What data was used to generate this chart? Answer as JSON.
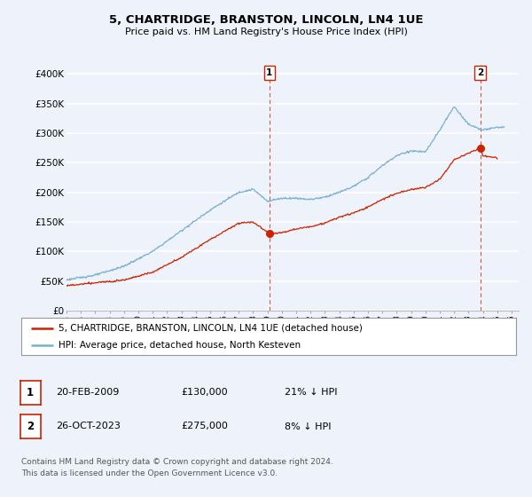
{
  "title": "5, CHARTRIDGE, BRANSTON, LINCOLN, LN4 1UE",
  "subtitle": "Price paid vs. HM Land Registry's House Price Index (HPI)",
  "ylabel_ticks": [
    "£0",
    "£50K",
    "£100K",
    "£150K",
    "£200K",
    "£250K",
    "£300K",
    "£350K",
    "£400K"
  ],
  "ytick_values": [
    0,
    50000,
    100000,
    150000,
    200000,
    250000,
    300000,
    350000,
    400000
  ],
  "ylim": [
    0,
    420000
  ],
  "xlim_start": 1995.0,
  "xlim_end": 2026.5,
  "background_color": "#eef2fa",
  "grid_color": "#ffffff",
  "hpi_color": "#7ab0d4",
  "price_color": "#cc2200",
  "vline_color": "#cc2200",
  "transaction1": {
    "date_num": 2009.13,
    "price": 130000,
    "label": "1",
    "date_str": "20-FEB-2009",
    "pct": "21% ↓ HPI"
  },
  "transaction2": {
    "date_num": 2023.82,
    "price": 275000,
    "label": "2",
    "date_str": "26-OCT-2023",
    "pct": "8% ↓ HPI"
  },
  "legend_line1": "5, CHARTRIDGE, BRANSTON, LINCOLN, LN4 1UE (detached house)",
  "legend_line2": "HPI: Average price, detached house, North Kesteven",
  "footnote": "Contains HM Land Registry data © Crown copyright and database right 2024.\nThis data is licensed under the Open Government Licence v3.0.",
  "table_row1": [
    "1",
    "20-FEB-2009",
    "£130,000",
    "21% ↓ HPI"
  ],
  "table_row2": [
    "2",
    "26-OCT-2023",
    "£275,000",
    "8% ↓ HPI"
  ],
  "xtick_years": [
    1995,
    1996,
    1997,
    1998,
    1999,
    2000,
    2001,
    2002,
    2003,
    2004,
    2005,
    2006,
    2007,
    2008,
    2009,
    2010,
    2011,
    2012,
    2013,
    2014,
    2015,
    2016,
    2017,
    2018,
    2019,
    2020,
    2021,
    2022,
    2023,
    2024,
    2025,
    2026
  ],
  "hpi_keypoints_x": [
    1995,
    1997,
    1999,
    2001,
    2003,
    2005,
    2007,
    2008,
    2009,
    2010,
    2011,
    2012,
    2013,
    2014,
    2015,
    2016,
    2017,
    2018,
    2019,
    2020,
    2021,
    2022,
    2023,
    2024,
    2025
  ],
  "hpi_keypoints_y": [
    52000,
    60000,
    75000,
    100000,
    135000,
    170000,
    200000,
    205000,
    185000,
    190000,
    190000,
    188000,
    192000,
    200000,
    210000,
    225000,
    245000,
    262000,
    270000,
    268000,
    305000,
    345000,
    315000,
    305000,
    310000
  ],
  "price_keypoints_x": [
    1995,
    1997,
    1999,
    2001,
    2003,
    2005,
    2007,
    2008,
    2009.13,
    2010,
    2011,
    2012,
    2013,
    2014,
    2015,
    2016,
    2017,
    2018,
    2019,
    2020,
    2021,
    2022,
    2023.82,
    2024,
    2025
  ],
  "price_keypoints_y": [
    42000,
    47000,
    52000,
    65000,
    90000,
    120000,
    148000,
    150000,
    130000,
    132000,
    138000,
    142000,
    148000,
    158000,
    165000,
    175000,
    188000,
    198000,
    205000,
    208000,
    222000,
    255000,
    275000,
    262000,
    258000
  ]
}
